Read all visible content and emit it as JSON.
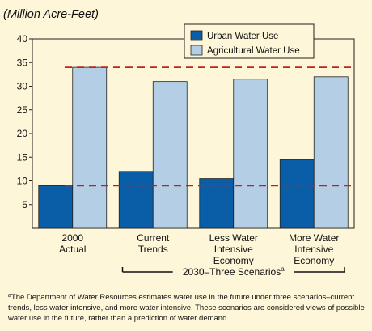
{
  "chart_data": {
    "type": "bar",
    "title": "(Million Acre-Feet)",
    "categories": [
      [
        "2000",
        "Actual"
      ],
      [
        "Current",
        "Trends"
      ],
      [
        "Less Water",
        "Intensive",
        "Economy"
      ],
      [
        "More Water",
        "Intensive",
        "Economy"
      ]
    ],
    "series": [
      {
        "name": "Urban Water Use",
        "values": [
          9,
          12,
          10.5,
          14.5
        ],
        "color": "#0a5ea8"
      },
      {
        "name": "Agricultural Water Use",
        "values": [
          34,
          31,
          31.5,
          32
        ],
        "color": "#b4cfe5"
      }
    ],
    "ylim": [
      0,
      40
    ],
    "yticks": [
      5,
      10,
      15,
      20,
      25,
      30,
      35,
      40
    ],
    "reference_lines": [
      {
        "value": 34,
        "color": "#c0201f",
        "style": "dashed"
      },
      {
        "value": 9,
        "color": "#c0201f",
        "style": "dashed"
      }
    ],
    "grid": false,
    "legend": "top-right",
    "group_bracket": {
      "label": "2030–Three Scenarios",
      "superscript": "a"
    },
    "colors": {
      "background": "#fdf6d8",
      "plot_background": "#fdf6d8"
    }
  },
  "footnote": {
    "marker": "a",
    "text": "The Department of Water Resources estimates water use in the future under three scenarios–current trends, less water intensive, and more water intensive. These scenarios are considered views of possible water use in the future, rather than a prediction of water demand."
  }
}
